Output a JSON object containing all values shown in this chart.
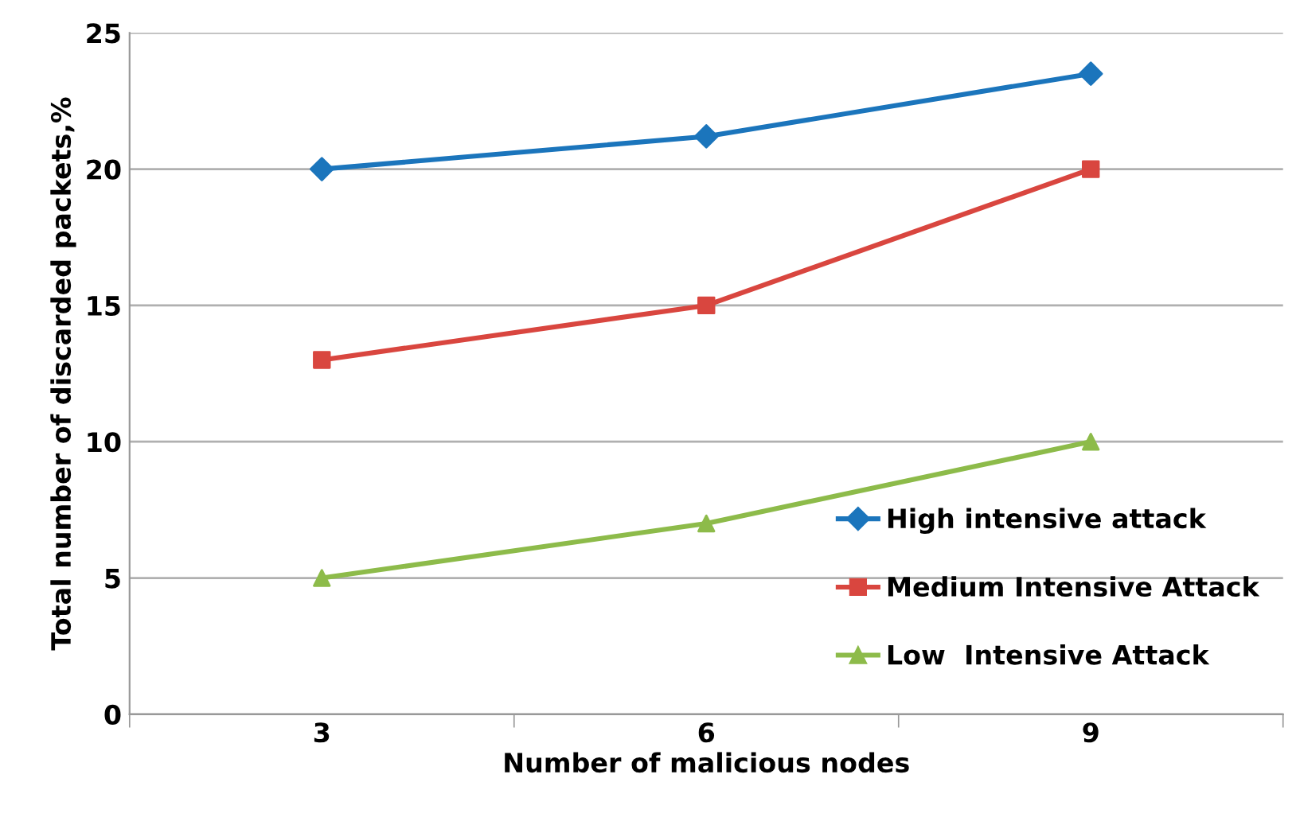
{
  "chart_data": {
    "type": "line",
    "xlabel": "Number of malicious nodes",
    "ylabel": "Total number of discarded packets,%",
    "x": [
      3,
      6,
      9
    ],
    "xlim": [
      1.5,
      10.5
    ],
    "xticks": [
      {
        "value": 1.5,
        "label": null
      },
      3,
      {
        "value": 4.5,
        "label": null
      },
      6,
      {
        "value": 7.5,
        "label": null
      },
      9,
      {
        "value": 10.5,
        "label": null
      }
    ],
    "series": [
      {
        "name": "High intensive attack",
        "color": "#1b75bc",
        "marker": "diamond",
        "values": [
          20,
          21.2,
          23.5
        ]
      },
      {
        "name": "Medium Intensive Attack",
        "color": "#d9463f",
        "marker": "square",
        "values": [
          13,
          15,
          20
        ]
      },
      {
        "name": "Low  Intensive Attack",
        "color": "#8dbb4a",
        "marker": "triangle",
        "values": [
          5,
          7,
          10
        ]
      }
    ],
    "ylim": [
      0,
      25
    ],
    "yticks": [
      0,
      5,
      10,
      15,
      20,
      25
    ],
    "grid": "y",
    "legend": "bottom right",
    "line_style": "solid"
  }
}
